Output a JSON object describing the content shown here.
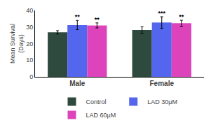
{
  "chart_data": {
    "type": "bar",
    "categories": [
      "Male",
      "Female"
    ],
    "series": [
      {
        "name": "Control",
        "color": "#2e4a3e",
        "values": [
          26.8,
          28.2
        ],
        "errors": [
          1.0,
          2.0
        ],
        "significance": [
          null,
          null
        ]
      },
      {
        "name": "LAD 30μM",
        "color": "#5566ee",
        "values": [
          31.2,
          32.7
        ],
        "errors": [
          2.8,
          3.5
        ],
        "significance": [
          "**",
          "***"
        ]
      },
      {
        "name": "LAD 60μM",
        "color": "#dd44bb",
        "values": [
          31.0,
          32.3
        ],
        "errors": [
          1.5,
          1.8
        ],
        "significance": [
          "**",
          "**"
        ]
      }
    ],
    "ylabel": "Mean Survival\n(Days)",
    "ylim": [
      0,
      40
    ],
    "yticks": [
      0,
      10,
      20,
      30,
      40
    ],
    "grid": false,
    "legend": "bottom"
  }
}
